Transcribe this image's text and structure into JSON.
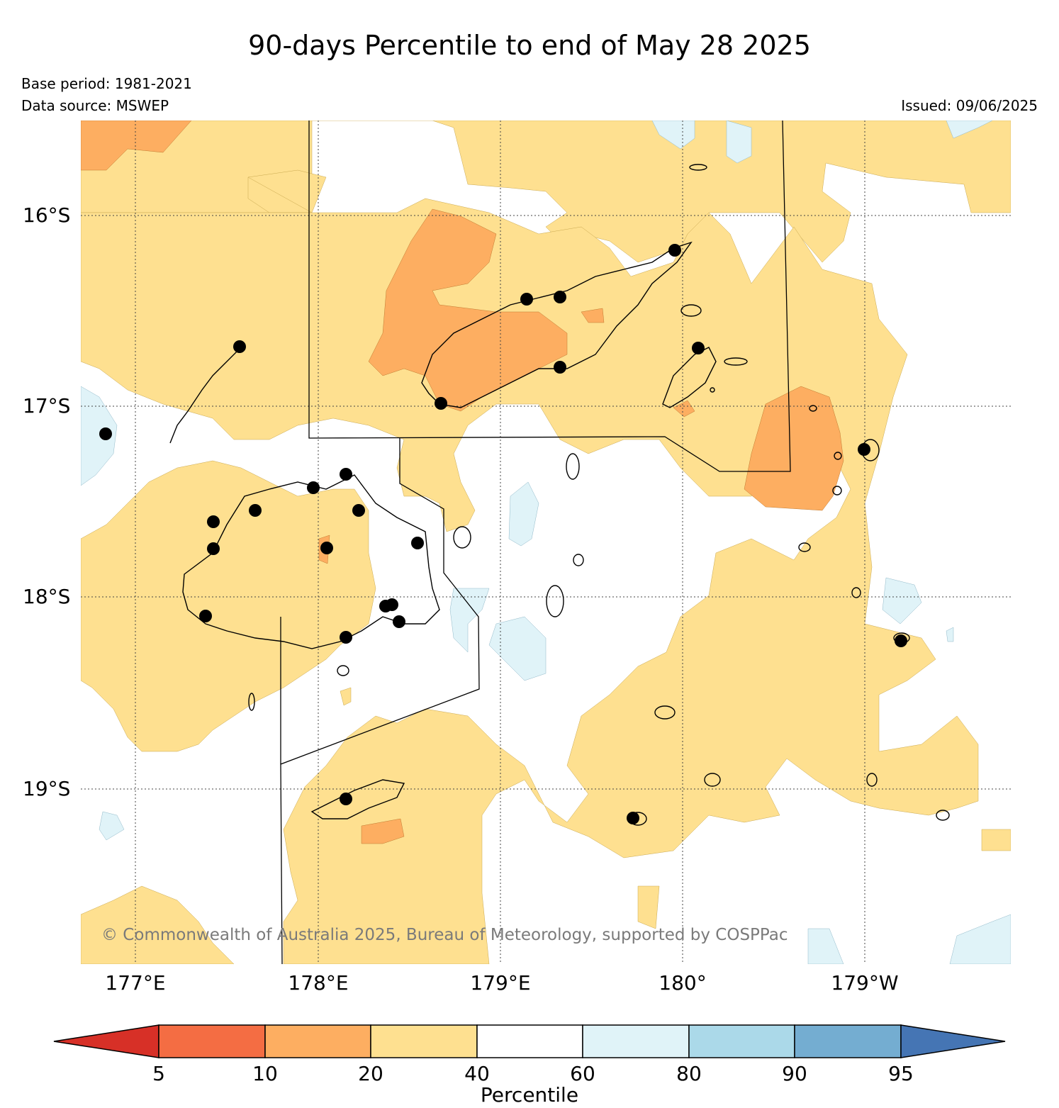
{
  "title": "90-days Percentile to end of May 28 2025",
  "base_period": "Base period: 1981-2021",
  "data_source": "Data source: MSWEP",
  "issued": "Issued: 09/06/2025",
  "copyright": "© Commonwealth of Australia 2025, Bureau of Meteorology, supported by COSPPac",
  "lat_labels": [
    "16°S",
    "17°S",
    "18°S",
    "19°S"
  ],
  "lon_labels": [
    "177°E",
    "178°E",
    "179°E",
    "180°",
    "179°W"
  ],
  "colorbar": {
    "label": "Percentile",
    "ticks": [
      "5",
      "10",
      "20",
      "40",
      "60",
      "80",
      "90",
      "95"
    ],
    "colors": {
      "below_5": "#d73027",
      "5-10": "#f46d43",
      "10-20": "#fdae61",
      "20-40": "#fee090",
      "40-60": "#ffffff",
      "60-80": "#e0f3f8",
      "80-90": "#abd9e9",
      "90-95": "#74add1",
      "above_95": "#4575b4"
    }
  },
  "stations": "black-dot-markers"
}
